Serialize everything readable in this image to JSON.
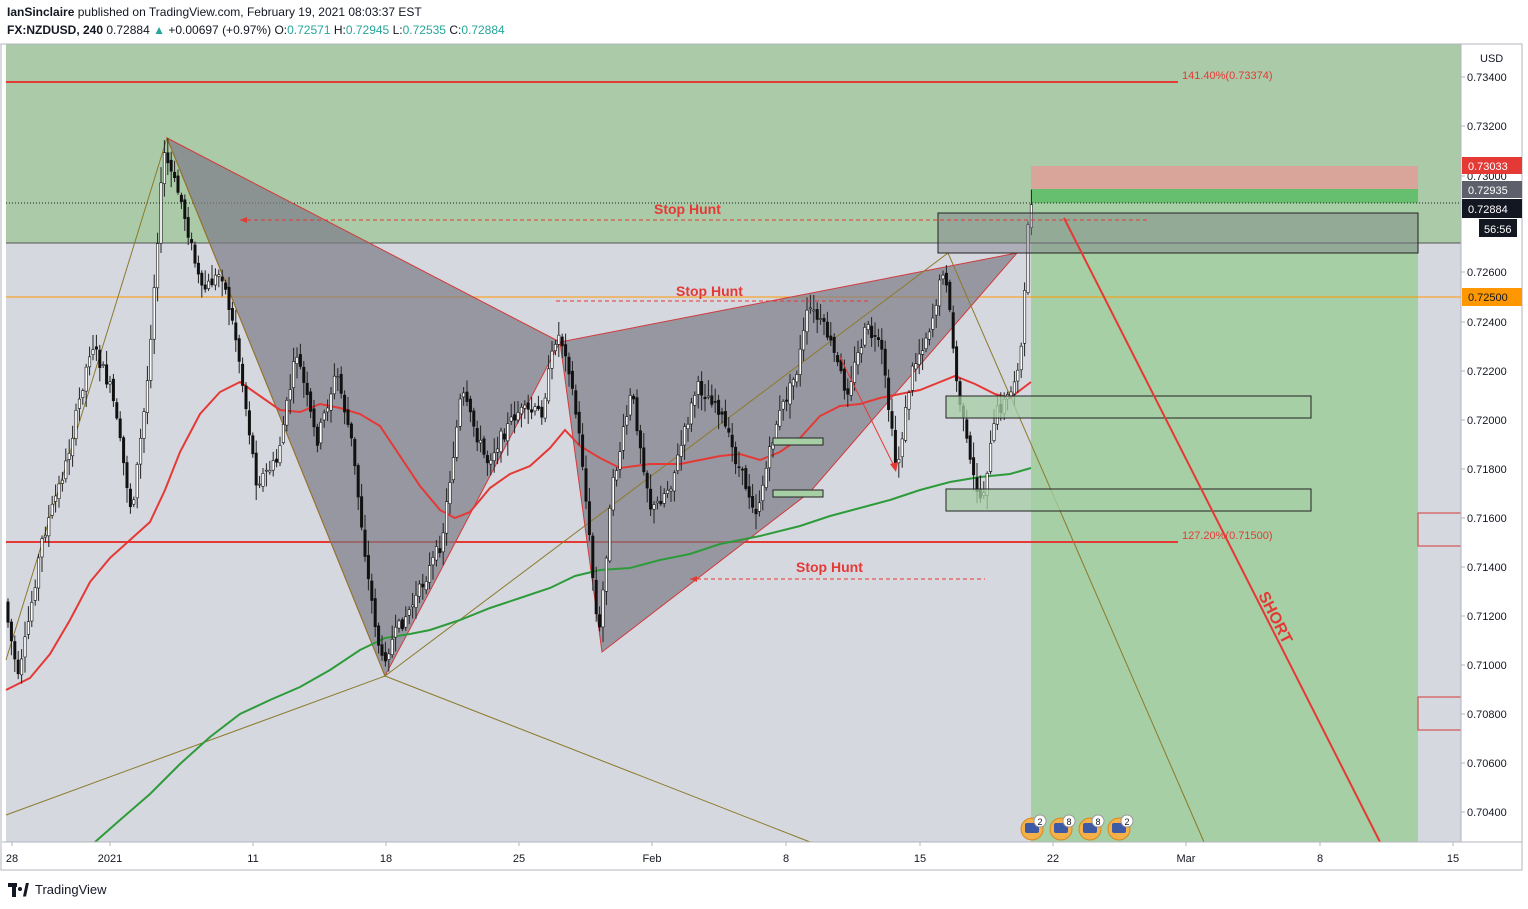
{
  "header": {
    "author": "IanSinclaire",
    "published_text": "published on TradingView.com, February 19, 2021 08:03:37 EST",
    "symbol": "FX:NZDUSD, 240",
    "last": "0.72884",
    "arrow": "▲",
    "change": "+0.00697 (+0.97%)",
    "o_label": "O:",
    "o": "0.72571",
    "h_label": "H:",
    "h": "0.72945",
    "l_label": "L:",
    "l": "0.72535",
    "c_label": "C:",
    "c": "0.72884"
  },
  "axis": {
    "currency": "USD",
    "price_ticks": [
      "0.73400",
      "0.73200",
      "0.73000",
      "0.72600",
      "0.72400",
      "0.72200",
      "0.72000",
      "0.71800",
      "0.71600",
      "0.71400",
      "0.71200",
      "0.71000",
      "0.70800",
      "0.70600",
      "0.70400"
    ],
    "time_ticks": [
      "28",
      "2021",
      "11",
      "18",
      "25",
      "Feb",
      "8",
      "15",
      "22",
      "Mar",
      "8",
      "15"
    ]
  },
  "badges": {
    "b1": "0.73033",
    "b2": "0.72935",
    "b3": "0.72884",
    "b4": "56:56",
    "b5": "0.72500"
  },
  "annotations": {
    "fib_top": "141.40%(0.73374)",
    "fib_bottom": "127.20%(0.71500)",
    "stop_hunt_1": "Stop Hunt",
    "stop_hunt_2": "Stop Hunt",
    "stop_hunt_3": "Stop Hunt",
    "short": "SHORT"
  },
  "events": [
    "2",
    "8",
    "8",
    "2"
  ],
  "footer": {
    "brand": "TradingView"
  },
  "colors": {
    "up": "#26a69a",
    "red_line": "#e53935",
    "green_ma": "#2e9b3a",
    "orange": "#ff9800",
    "zone_green": "#a9d2a9",
    "pattern_gray": "#8a8a96"
  },
  "chart_data": {
    "type": "candlestick",
    "symbol": "FX:NZDUSD",
    "timeframe": "240",
    "ylim": [
      0.7028,
      0.7353
    ],
    "levels": {
      "fib_141": 0.73374,
      "fib_127": 0.715,
      "orange": 0.725,
      "zone_low": 0.7273,
      "current": 0.72884
    },
    "short_position": {
      "entry": 0.72935,
      "stop": 0.73033,
      "target": 0.7028
    }
  }
}
